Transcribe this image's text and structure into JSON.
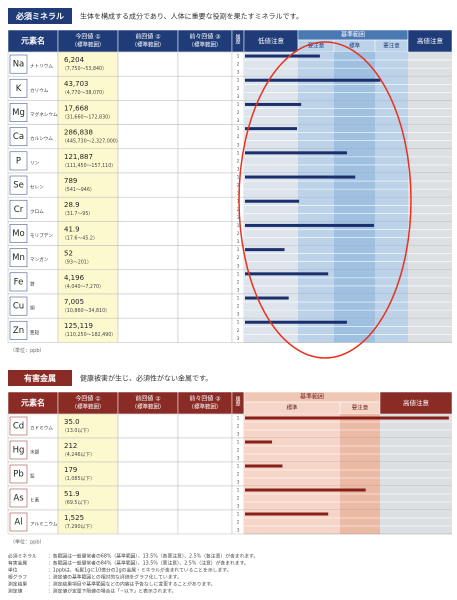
{
  "essential": {
    "title": "必須ミネラル",
    "description": "生体を構成する成分であり、人体に重要な役割を果たすミネラルです。",
    "headers": {
      "element": "元素名",
      "current": [
        "今回値 ①",
        "（標準範囲）"
      ],
      "previous": [
        "前回値 ②",
        "（標準範囲）"
      ],
      "before_previous": [
        "前々回値 ③",
        "（標準範囲）"
      ],
      "history": "履歴",
      "low": "低値注意",
      "range": "基準範囲",
      "caution": "要注意",
      "standard": "標準",
      "high": "高値注意"
    },
    "history_marks": [
      "1",
      "2",
      "3"
    ],
    "rows": [
      {
        "symbol": "Na",
        "name": "ナトリウム",
        "value": "6,204",
        "range": "（7,750〜53,840）",
        "graph_level": 36
      },
      {
        "symbol": "K",
        "name": "カリウム",
        "value": "43,703",
        "range": "（4,770〜38,070）",
        "graph_level": 65
      },
      {
        "symbol": "Mg",
        "name": "マグネシウム",
        "value": "17,668",
        "range": "（31,660〜172,830）",
        "graph_level": 27
      },
      {
        "symbol": "Ca",
        "name": "カルシウム",
        "value": "286,838",
        "range": "（445,730〜2,327,000）",
        "graph_level": 25
      },
      {
        "symbol": "P",
        "name": "リン",
        "value": "121,887",
        "range": "（111,450〜157,110）",
        "graph_level": 49
      },
      {
        "symbol": "Se",
        "name": "セレン",
        "value": "789",
        "range": "（541〜946）",
        "graph_level": 53
      },
      {
        "symbol": "Cr",
        "name": "クロム",
        "value": "28.9",
        "range": "（31.7〜95）",
        "graph_level": 26
      },
      {
        "symbol": "Mo",
        "name": "モリブデン",
        "value": "41.9",
        "range": "（17.6〜45.2）",
        "graph_level": 62
      },
      {
        "symbol": "Mn",
        "name": "マンガン",
        "value": "52",
        "range": "（93〜201）",
        "graph_level": 19
      },
      {
        "symbol": "Fe",
        "name": "鉄",
        "value": "4,196",
        "range": "（4,040〜7,270）",
        "graph_level": 40
      },
      {
        "symbol": "Cu",
        "name": "銅",
        "value": "7,005",
        "range": "（10,860〜34,810）",
        "graph_level": 21
      },
      {
        "symbol": "Zn",
        "name": "亜鉛",
        "value": "125,119",
        "range": "（110,250〜182,490）",
        "graph_level": 49
      }
    ],
    "unit_note": "（単位：ppb）"
  },
  "toxic": {
    "title": "有害金属",
    "description": "健康被害が生じ、必須性がない金属です。",
    "headers": {
      "element": "元素名",
      "current": [
        "今回値 ①",
        "（標準範囲）"
      ],
      "previous": [
        "前回値 ②",
        "（標準範囲）"
      ],
      "before_previous": [
        "前々回値 ③",
        "（標準範囲）"
      ],
      "history": "履歴",
      "range": "基準範囲",
      "standard": "標準",
      "caution": "要注意",
      "high": "高値注意"
    },
    "history_marks": [
      "1",
      "2",
      "3"
    ],
    "rows": [
      {
        "symbol": "Cd",
        "name": "カドミウム",
        "value": "35.0",
        "range": "（13.0以下）",
        "graph_level": 98
      },
      {
        "symbol": "Hg",
        "name": "水銀",
        "value": "212",
        "range": "（4,246以下）",
        "graph_level": 13
      },
      {
        "symbol": "Pb",
        "name": "鉛",
        "value": "179",
        "range": "（1,085以下）",
        "graph_level": 18
      },
      {
        "symbol": "As",
        "name": "ヒ素",
        "value": "51.9",
        "range": "（69.5以下）",
        "graph_level": 58
      },
      {
        "symbol": "Al",
        "name": "アルミニウム",
        "value": "1,525",
        "range": "（7,290以下）",
        "graph_level": 40
      }
    ],
    "unit_note": "（単位：ppb）"
  },
  "footnotes": [
    {
      "term": "必須ミネラル",
      "text": "：各範囲は一般健常者の68%（基準範囲）、13.5%（各要注意）、2.5%（各注意）が含まれます。"
    },
    {
      "term": "有害金属",
      "text": "：各範囲は一般健常者の84%（基準範囲）、13.5%（要注意）、2.5%（注意）が含まれます。"
    },
    {
      "term": "単位",
      "text": "：1ppbは、毛髪1gに10億分の1gの金属・ミネラルが含まれていることを示します。"
    },
    {
      "term": "棒グラフ",
      "text": "：測定値の基準範囲との相対的な評価をグラフ化しています。"
    },
    {
      "term": "測定結果",
      "text": "：測定結果項目や基準範囲などの内容は予告なしに変更することがあります。"
    },
    {
      "term": "測定値",
      "text": "：測定値が定量下限値の場合は「−以下」と表示されます。"
    }
  ]
}
